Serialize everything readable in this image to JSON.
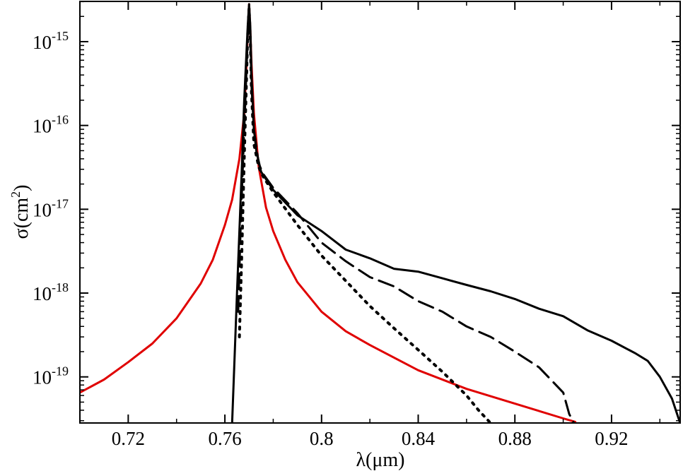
{
  "chart_data": {
    "type": "line",
    "title": "",
    "xlabel": "λ(μm)",
    "ylabel_parts": {
      "base": "σ(cm",
      "sup": "2",
      "end": ")"
    },
    "xlim": [
      0.7,
      0.9484
    ],
    "ylim_log10": [
      -19.55,
      -14.52
    ],
    "y_scale": "log",
    "grid": false,
    "legend": "none",
    "xticks": [
      {
        "value": 0.72,
        "label": "0.72"
      },
      {
        "value": 0.76,
        "label": "0.76"
      },
      {
        "value": 0.8,
        "label": "0.8"
      },
      {
        "value": 0.84,
        "label": "0.84"
      },
      {
        "value": 0.88,
        "label": "0.88"
      },
      {
        "value": 0.92,
        "label": "0.92"
      }
    ],
    "yticks": [
      {
        "exp": -15,
        "base": "10",
        "sup": "-15"
      },
      {
        "exp": -16,
        "base": "10",
        "sup": "-16"
      },
      {
        "exp": -17,
        "base": "10",
        "sup": "-17"
      },
      {
        "exp": -18,
        "base": "10",
        "sup": "-18"
      },
      {
        "exp": -19,
        "base": "10",
        "sup": "-19"
      }
    ],
    "series": [
      {
        "color": "#e00000",
        "dash": "",
        "x": [
          0.7,
          0.71,
          0.72,
          0.73,
          0.74,
          0.75,
          0.755,
          0.76,
          0.763,
          0.766,
          0.768,
          0.769,
          0.7695,
          0.77,
          0.7705,
          0.771,
          0.772,
          0.774,
          0.777,
          0.78,
          0.785,
          0.79,
          0.8,
          0.81,
          0.82,
          0.84,
          0.86,
          0.88,
          0.9,
          0.905
        ],
        "y": [
          6.5e-20,
          9.3e-20,
          1.5e-19,
          2.5e-19,
          5e-19,
          1.3e-18,
          2.5e-18,
          6.5e-18,
          1.3e-17,
          4e-17,
          1.4e-16,
          5.5e-16,
          1.4e-15,
          2.8e-15,
          1.4e-15,
          5.5e-16,
          1.4e-16,
          3.2e-17,
          1.05e-17,
          5.5e-18,
          2.5e-18,
          1.35e-18,
          6e-19,
          3.5e-19,
          2.4e-19,
          1.2e-19,
          7.2e-20,
          4.8e-20,
          3.2e-20,
          2.9e-20
        ]
      },
      {
        "color": "#000000",
        "dash": "",
        "x": [
          0.763,
          0.765,
          0.767,
          0.768,
          0.769,
          0.7695,
          0.77,
          0.7705,
          0.771,
          0.772,
          0.773,
          0.775,
          0.78,
          0.79,
          0.8,
          0.81,
          0.82,
          0.83,
          0.84,
          0.85,
          0.86,
          0.87,
          0.88,
          0.89,
          0.9,
          0.91,
          0.92,
          0.93,
          0.935,
          0.94,
          0.945,
          0.9484
        ],
        "y": [
          2.8e-20,
          1e-18,
          3e-17,
          2e-16,
          8e-16,
          1.6e-15,
          2.8e-15,
          1.5e-15,
          4e-16,
          9e-17,
          5e-17,
          2.8e-17,
          1.7e-17,
          8.5e-18,
          5.5e-18,
          3.3e-18,
          2.6e-18,
          1.95e-18,
          1.8e-18,
          1.5e-18,
          1.25e-18,
          1.05e-18,
          8.5e-19,
          6.5e-19,
          5.3e-19,
          3.6e-19,
          2.7e-19,
          1.9e-19,
          1.55e-19,
          1e-19,
          5.5e-20,
          2.8e-20
        ]
      },
      {
        "color": "#000000",
        "dash": "22,10",
        "x": [
          0.7655,
          0.7665,
          0.767,
          0.768,
          0.769,
          0.7695,
          0.77,
          0.7705,
          0.771,
          0.772,
          0.774,
          0.776,
          0.78,
          0.79,
          0.8,
          0.81,
          0.82,
          0.83,
          0.84,
          0.85,
          0.86,
          0.87,
          0.88,
          0.89,
          0.9,
          0.9025,
          0.9045
        ],
        "y": [
          6e-19,
          6e-18,
          1.5e-17,
          9e-17,
          5e-16,
          1.4e-15,
          2.6e-15,
          1.2e-15,
          3e-16,
          9e-17,
          3.5e-17,
          2.6e-17,
          1.8e-17,
          9e-18,
          4e-18,
          2.4e-18,
          1.55e-18,
          1.2e-18,
          8e-19,
          6e-19,
          4e-19,
          3e-19,
          2e-19,
          1.3e-19,
          6.5e-20,
          3.6e-20,
          2.8e-20
        ]
      },
      {
        "color": "#000000",
        "dash": "3,8",
        "x": [
          0.766,
          0.767,
          0.768,
          0.769,
          0.7695,
          0.77,
          0.7705,
          0.771,
          0.772,
          0.774,
          0.776,
          0.78,
          0.79,
          0.8,
          0.81,
          0.82,
          0.83,
          0.84,
          0.85,
          0.86,
          0.865,
          0.87
        ],
        "y": [
          3e-19,
          3e-18,
          4e-17,
          4e-16,
          1.3e-15,
          2.5e-15,
          1.1e-15,
          2.5e-16,
          6e-17,
          3.2e-17,
          2.4e-17,
          1.6e-17,
          6.5e-18,
          2.8e-18,
          1.4e-18,
          7e-19,
          3.8e-19,
          2.1e-19,
          1.15e-19,
          6e-20,
          4e-20,
          2.8e-20
        ]
      }
    ]
  }
}
